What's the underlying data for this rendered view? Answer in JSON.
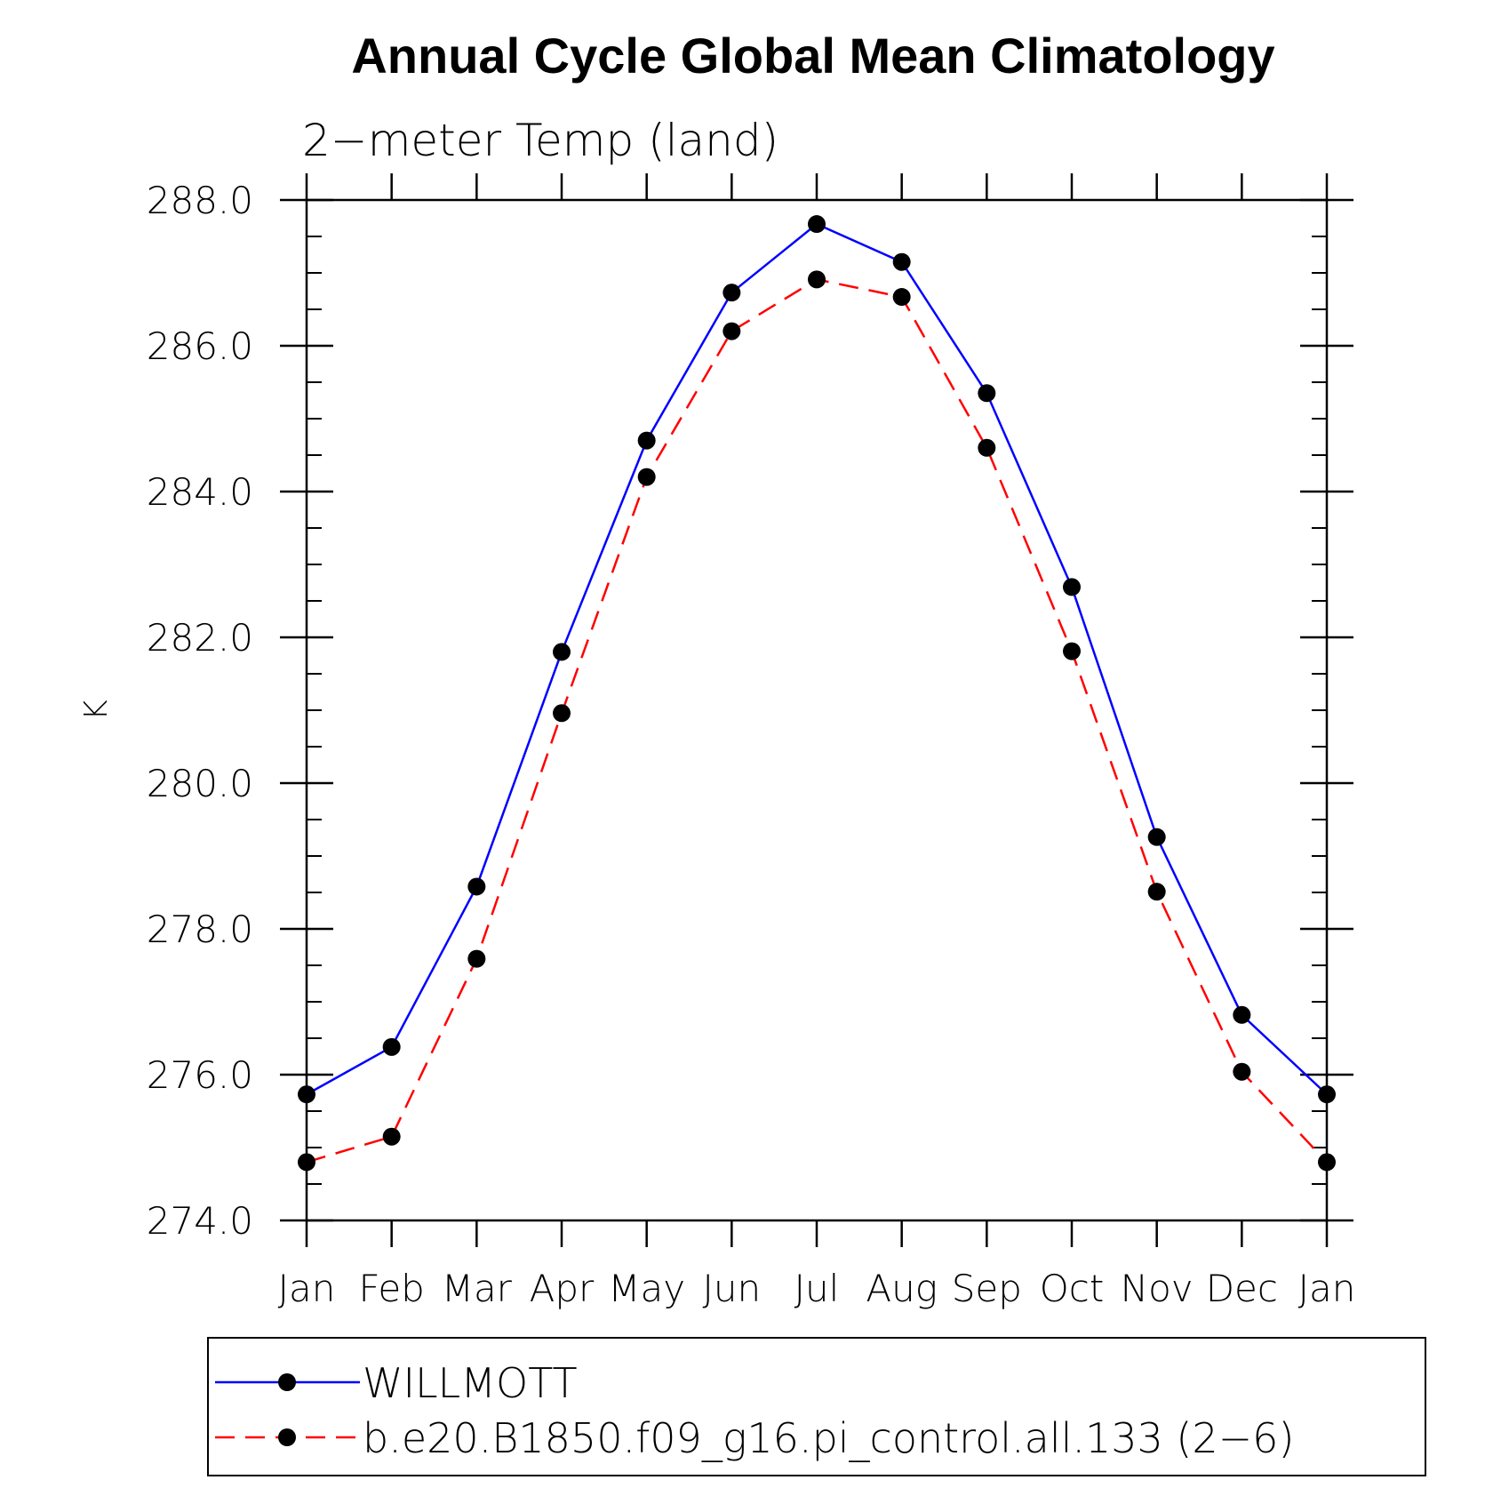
{
  "chart_data": {
    "type": "line",
    "title": "Annual Cycle Global Mean Climatology",
    "subtitle": "2−meter Temp (land)",
    "ylabel": "K",
    "xlabel": "",
    "categories": [
      "Jan",
      "Feb",
      "Mar",
      "Apr",
      "May",
      "Jun",
      "Jul",
      "Aug",
      "Sep",
      "Oct",
      "Nov",
      "Dec",
      "Jan"
    ],
    "ylim": [
      274.0,
      288.0
    ],
    "yticks": [
      274.0,
      276.0,
      278.0,
      280.0,
      282.0,
      284.0,
      286.0,
      288.0
    ],
    "ytick_labels": [
      "274.0",
      "276.0",
      "278.0",
      "280.0",
      "282.0",
      "284.0",
      "286.0",
      "288.0"
    ],
    "series": [
      {
        "name": "WILLMOTT",
        "color": "#0000ff",
        "dash": "solid",
        "marker": "filled-circle",
        "values": [
          275.73,
          276.38,
          278.58,
          281.8,
          284.7,
          286.73,
          287.67,
          287.15,
          285.35,
          282.69,
          279.26,
          276.82,
          275.73
        ]
      },
      {
        "name": "b.e20.B1850.f09_g16.pi_control.all.133 (2−6)",
        "color": "#ff0000",
        "dash": "dashed",
        "marker": "filed-circle-placeholder",
        "values": [
          274.8,
          275.15,
          277.59,
          280.96,
          284.2,
          286.2,
          286.91,
          286.67,
          284.6,
          281.81,
          278.51,
          276.04,
          274.8
        ]
      }
    ],
    "legend": {
      "position": "bottom",
      "box": true
    },
    "grid": false
  }
}
